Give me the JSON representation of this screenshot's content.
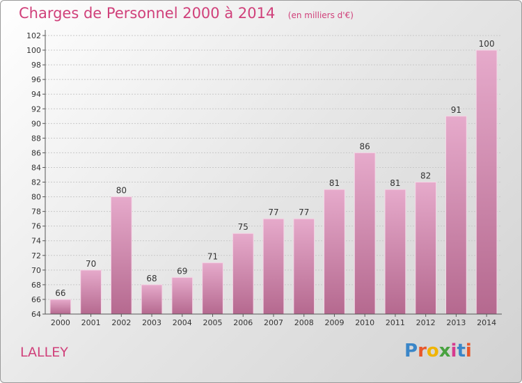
{
  "header": {
    "title": "Charges de Personnel 2000 à 2014",
    "subtitle": "(en milliers d'€)"
  },
  "footer": {
    "commune": "LALLEY",
    "logo_text": "Proxiti",
    "logo_colors": [
      "#3a86c8",
      "#e8572a",
      "#f0b400",
      "#48a23f",
      "#d63a8e",
      "#3a86c8",
      "#e8572a"
    ]
  },
  "chart_data": {
    "type": "bar",
    "categories": [
      "2000",
      "2001",
      "2002",
      "2003",
      "2004",
      "2005",
      "2006",
      "2007",
      "2008",
      "2009",
      "2010",
      "2011",
      "2012",
      "2013",
      "2014"
    ],
    "values": [
      66,
      70,
      80,
      68,
      69,
      71,
      75,
      77,
      77,
      81,
      86,
      81,
      82,
      91,
      100
    ],
    "value_labels": [
      "66",
      "70",
      "80",
      "68",
      "69",
      "71",
      "75",
      "77",
      "77",
      "81",
      "86",
      "81",
      "82",
      "91",
      "100"
    ],
    "yticks": [
      64,
      66,
      68,
      70,
      72,
      74,
      76,
      78,
      80,
      82,
      84,
      86,
      88,
      90,
      92,
      94,
      96,
      98,
      100,
      102
    ],
    "ylim": [
      64,
      102
    ],
    "grid": true,
    "bar_color": "#d88fb5"
  }
}
